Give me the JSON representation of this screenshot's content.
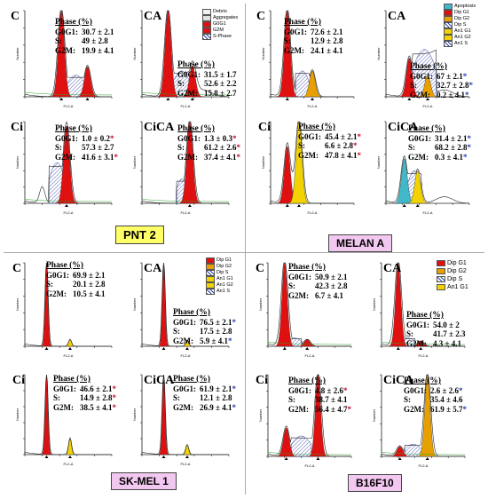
{
  "badges": {
    "pnt2": {
      "label": "PNT 2",
      "color": "#ffff66"
    },
    "melan": {
      "label": "MELAN A",
      "color": "#f3c8f0"
    },
    "skmel": {
      "label": "SK-MEL 1",
      "color": "#f3c8f0"
    },
    "b16": {
      "label": "B16F10",
      "color": "#f3c8f0"
    }
  },
  "legends": {
    "pnt2": [
      "Debris",
      "Aggregates",
      "G0G1",
      "G2M",
      "S-Phase"
    ],
    "melan": [
      "Apoptosis",
      "Dip G1",
      "Dip G2",
      "Dip S",
      "An1 G1",
      "An1 G2",
      "An1 S"
    ],
    "skmel": [
      "Dip G1",
      "Dip G2",
      "Dip S",
      "An1 G1",
      "An1 G2",
      "An1 S"
    ],
    "b16": [
      "Dip G1",
      "Dip G2",
      "Dip S",
      "An1 G1"
    ]
  },
  "axis": {
    "xlabel": "FL2-A",
    "ylabel": "Number"
  },
  "phase_header": "Phase   (%)",
  "row_labels": {
    "g0": "G0G1:",
    "s": "S:",
    "g2": "G2M:"
  },
  "panels": {
    "p1": {
      "letter": "C",
      "g0": "30.7 ± 2.1",
      "s": "49   ± 2.8",
      "g2": "19.9 ± 4.1",
      "g0s": "",
      "ss": "",
      "g2s": ""
    },
    "p2": {
      "letter": "CA",
      "g0": "31.5 ± 1.7",
      "s": "52.6 ± 2.2",
      "g2": "15.8 ± 2.7",
      "g0s": "",
      "ss": "",
      "g2s": ""
    },
    "p3": {
      "letter": "Ci",
      "g0": "1.0 ± 0.2",
      "s": "57.3 ± 2.7",
      "g2": "41.6 ± 3.1",
      "g0s": "*",
      "ss": "",
      "g2s": "*"
    },
    "p4": {
      "letter": "CiCA",
      "g0": "1.3 ± 0.3",
      "s": "61.2 ± 2.6",
      "g2": "37.4 ± 4.1",
      "g0s": "*",
      "ss": "*",
      "g2s": "*"
    },
    "m1": {
      "letter": "C",
      "g0": "72.6 ± 2.1",
      "s": "12.9 ± 2.8",
      "g2": "24.1 ± 4.1",
      "g0s": "",
      "ss": "",
      "g2s": ""
    },
    "m2": {
      "letter": "CA",
      "g0": "67   ± 2.1",
      "s": "32.7 ± 2.8",
      "g2": "0.2 ± 4.1",
      "g0s": "*",
      "ss": "*",
      "g2s": "*"
    },
    "m3": {
      "letter": "Ci",
      "g0": "45.4 ± 2.1",
      "s": "6.6 ± 2.8",
      "g2": "47.8 ± 4.1",
      "g0s": "*",
      "ss": "*",
      "g2s": "*"
    },
    "m4": {
      "letter": "CiCA",
      "g0": "31.4 ± 2.1",
      "s": "68.2 ± 2.8",
      "g2": "0.3 ± 4.1",
      "g0s": "*",
      "ss": "*",
      "g2s": "*"
    },
    "s1": {
      "letter": "C",
      "g0": "69.9 ± 2.1",
      "s": "20.1 ± 2.8",
      "g2": "10.5 ± 4.1",
      "g0s": "",
      "ss": "",
      "g2s": ""
    },
    "s2": {
      "letter": "CA",
      "g0": "76.5 ± 2.1",
      "s": "17.5 ± 2.8",
      "g2": "5.9 ± 4.1",
      "g0s": "*",
      "ss": "",
      "g2s": "*"
    },
    "s3": {
      "letter": "Ci",
      "g0": "46.6 ± 2.1",
      "s": "14.9 ± 2.8",
      "g2": "38.5 ± 4.1",
      "g0s": "*",
      "ss": "*",
      "g2s": "*"
    },
    "s4": {
      "letter": "CiCA",
      "g0": "61.9 ± 2.1",
      "s": "12.1 ± 2.8",
      "g2": "26.9 ± 4.1",
      "g0s": "*",
      "ss": "",
      "g2s": "*"
    },
    "b1": {
      "letter": "C",
      "g0": "50.9 ± 2.1",
      "s": "42.3 ± 2.8",
      "g2": "6.7 ± 4.1",
      "g0s": "",
      "ss": "",
      "g2s": ""
    },
    "b2": {
      "letter": "CA",
      "g0": "54.0 ± 2",
      "s": "41.7 ± 2.3",
      "g2": "4.3 ± 4.1",
      "g0s": "",
      "ss": "",
      "g2s": ""
    },
    "b3": {
      "letter": "Ci",
      "g0": "4.8 ± 2.6",
      "s": "38.7 ± 4.1",
      "g2": "56.4 ± 4.7",
      "g0s": "*",
      "ss": "",
      "g2s": "*"
    },
    "b4": {
      "letter": "CiCA",
      "g0": "2.6 ± 2.6",
      "s": "35.4 ± 4.6",
      "g2": "61.9 ± 5.7",
      "g0s": "*",
      "ss": "",
      "g2s": "*"
    }
  }
}
